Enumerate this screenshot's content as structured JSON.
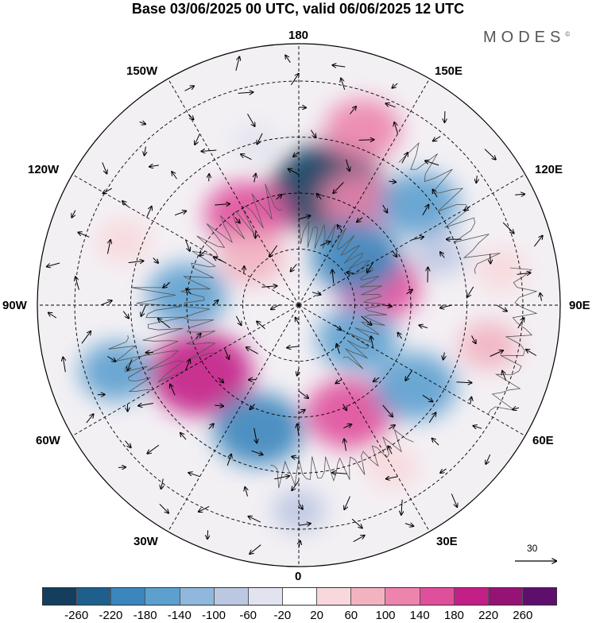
{
  "title": "Base 03/06/2025 00 UTC, valid 06/06/2025 12 UTC",
  "brand": "MODES",
  "brand_mark": "©",
  "longitude_labels": {
    "top": "180",
    "bottom": "0",
    "left": "90W",
    "right": "90E",
    "upper_left_150": "150W",
    "upper_right_150": "150E",
    "upper_left_120": "120W",
    "upper_right_120": "120E",
    "lower_left_60": "60W",
    "lower_right_60": "60E",
    "lower_left_30": "30W",
    "lower_right_30": "30E"
  },
  "vector_scale_label": "30",
  "colorbar": {
    "colors": [
      "#133e5e",
      "#1f5f8c",
      "#3a86bd",
      "#5ca0cf",
      "#8fb8dc",
      "#bcc7e2",
      "#e2e3f0",
      "#ffffff",
      "#f8d8dc",
      "#f2b3c1",
      "#ec84ad",
      "#e04f9c",
      "#c31f87",
      "#961376",
      "#5e0f6e"
    ],
    "tick_labels": [
      "-260",
      "-220",
      "-180",
      "-140",
      "-100",
      "-60",
      "-20",
      "20",
      "60",
      "100",
      "140",
      "180",
      "220",
      "260"
    ]
  },
  "anomaly_centers": [
    {
      "lon": 166,
      "lat": 58,
      "value": -240,
      "color": "#133e5e"
    },
    {
      "lon": -150,
      "lat": 62,
      "value": 150,
      "color": "#e04f9c"
    },
    {
      "lon": 160,
      "lat": 40,
      "value": 130,
      "color": "#ec84ad"
    },
    {
      "lon": 150,
      "lat": 58,
      "value": 120,
      "color": "#ec84ad"
    },
    {
      "lon": 130,
      "lat": 48,
      "value": -140,
      "color": "#5ca0cf"
    },
    {
      "lon": 103,
      "lat": 68,
      "value": 150,
      "color": "#e04f9c"
    },
    {
      "lon": 130,
      "lat": 70,
      "value": -170,
      "color": "#3a86bd"
    },
    {
      "lon": -95,
      "lat": 60,
      "value": -140,
      "color": "#5ca0cf"
    },
    {
      "lon": -55,
      "lat": 58,
      "value": 210,
      "color": "#c31f87"
    },
    {
      "lon": -18,
      "lat": 55,
      "value": -170,
      "color": "#3a86bd"
    },
    {
      "lon": 25,
      "lat": 58,
      "value": 160,
      "color": "#e04f9c"
    },
    {
      "lon": 55,
      "lat": 52,
      "value": -150,
      "color": "#5ca0cf"
    },
    {
      "lon": 60,
      "lat": 72,
      "value": -140,
      "color": "#5ca0cf"
    },
    {
      "lon": -70,
      "lat": 38,
      "value": -120,
      "color": "#5ca0cf"
    },
    {
      "lon": -135,
      "lat": 72,
      "value": 100,
      "color": "#f2b3c1"
    },
    {
      "lon": 78,
      "lat": 38,
      "value": 80,
      "color": "#f2b3c1"
    },
    {
      "lon": 100,
      "lat": 35,
      "value": 60,
      "color": "#f8d8dc"
    },
    {
      "lon": -110,
      "lat": 40,
      "value": 60,
      "color": "#f8d8dc"
    },
    {
      "lon": 30,
      "lat": 40,
      "value": 60,
      "color": "#f8d8dc"
    },
    {
      "lon": 0,
      "lat": 35,
      "value": -60,
      "color": "#bcc7e2"
    },
    {
      "lon": -165,
      "lat": 45,
      "value": -40,
      "color": "#e2e3f0"
    },
    {
      "lon": 110,
      "lat": 50,
      "value": -60,
      "color": "#bcc7e2"
    }
  ]
}
